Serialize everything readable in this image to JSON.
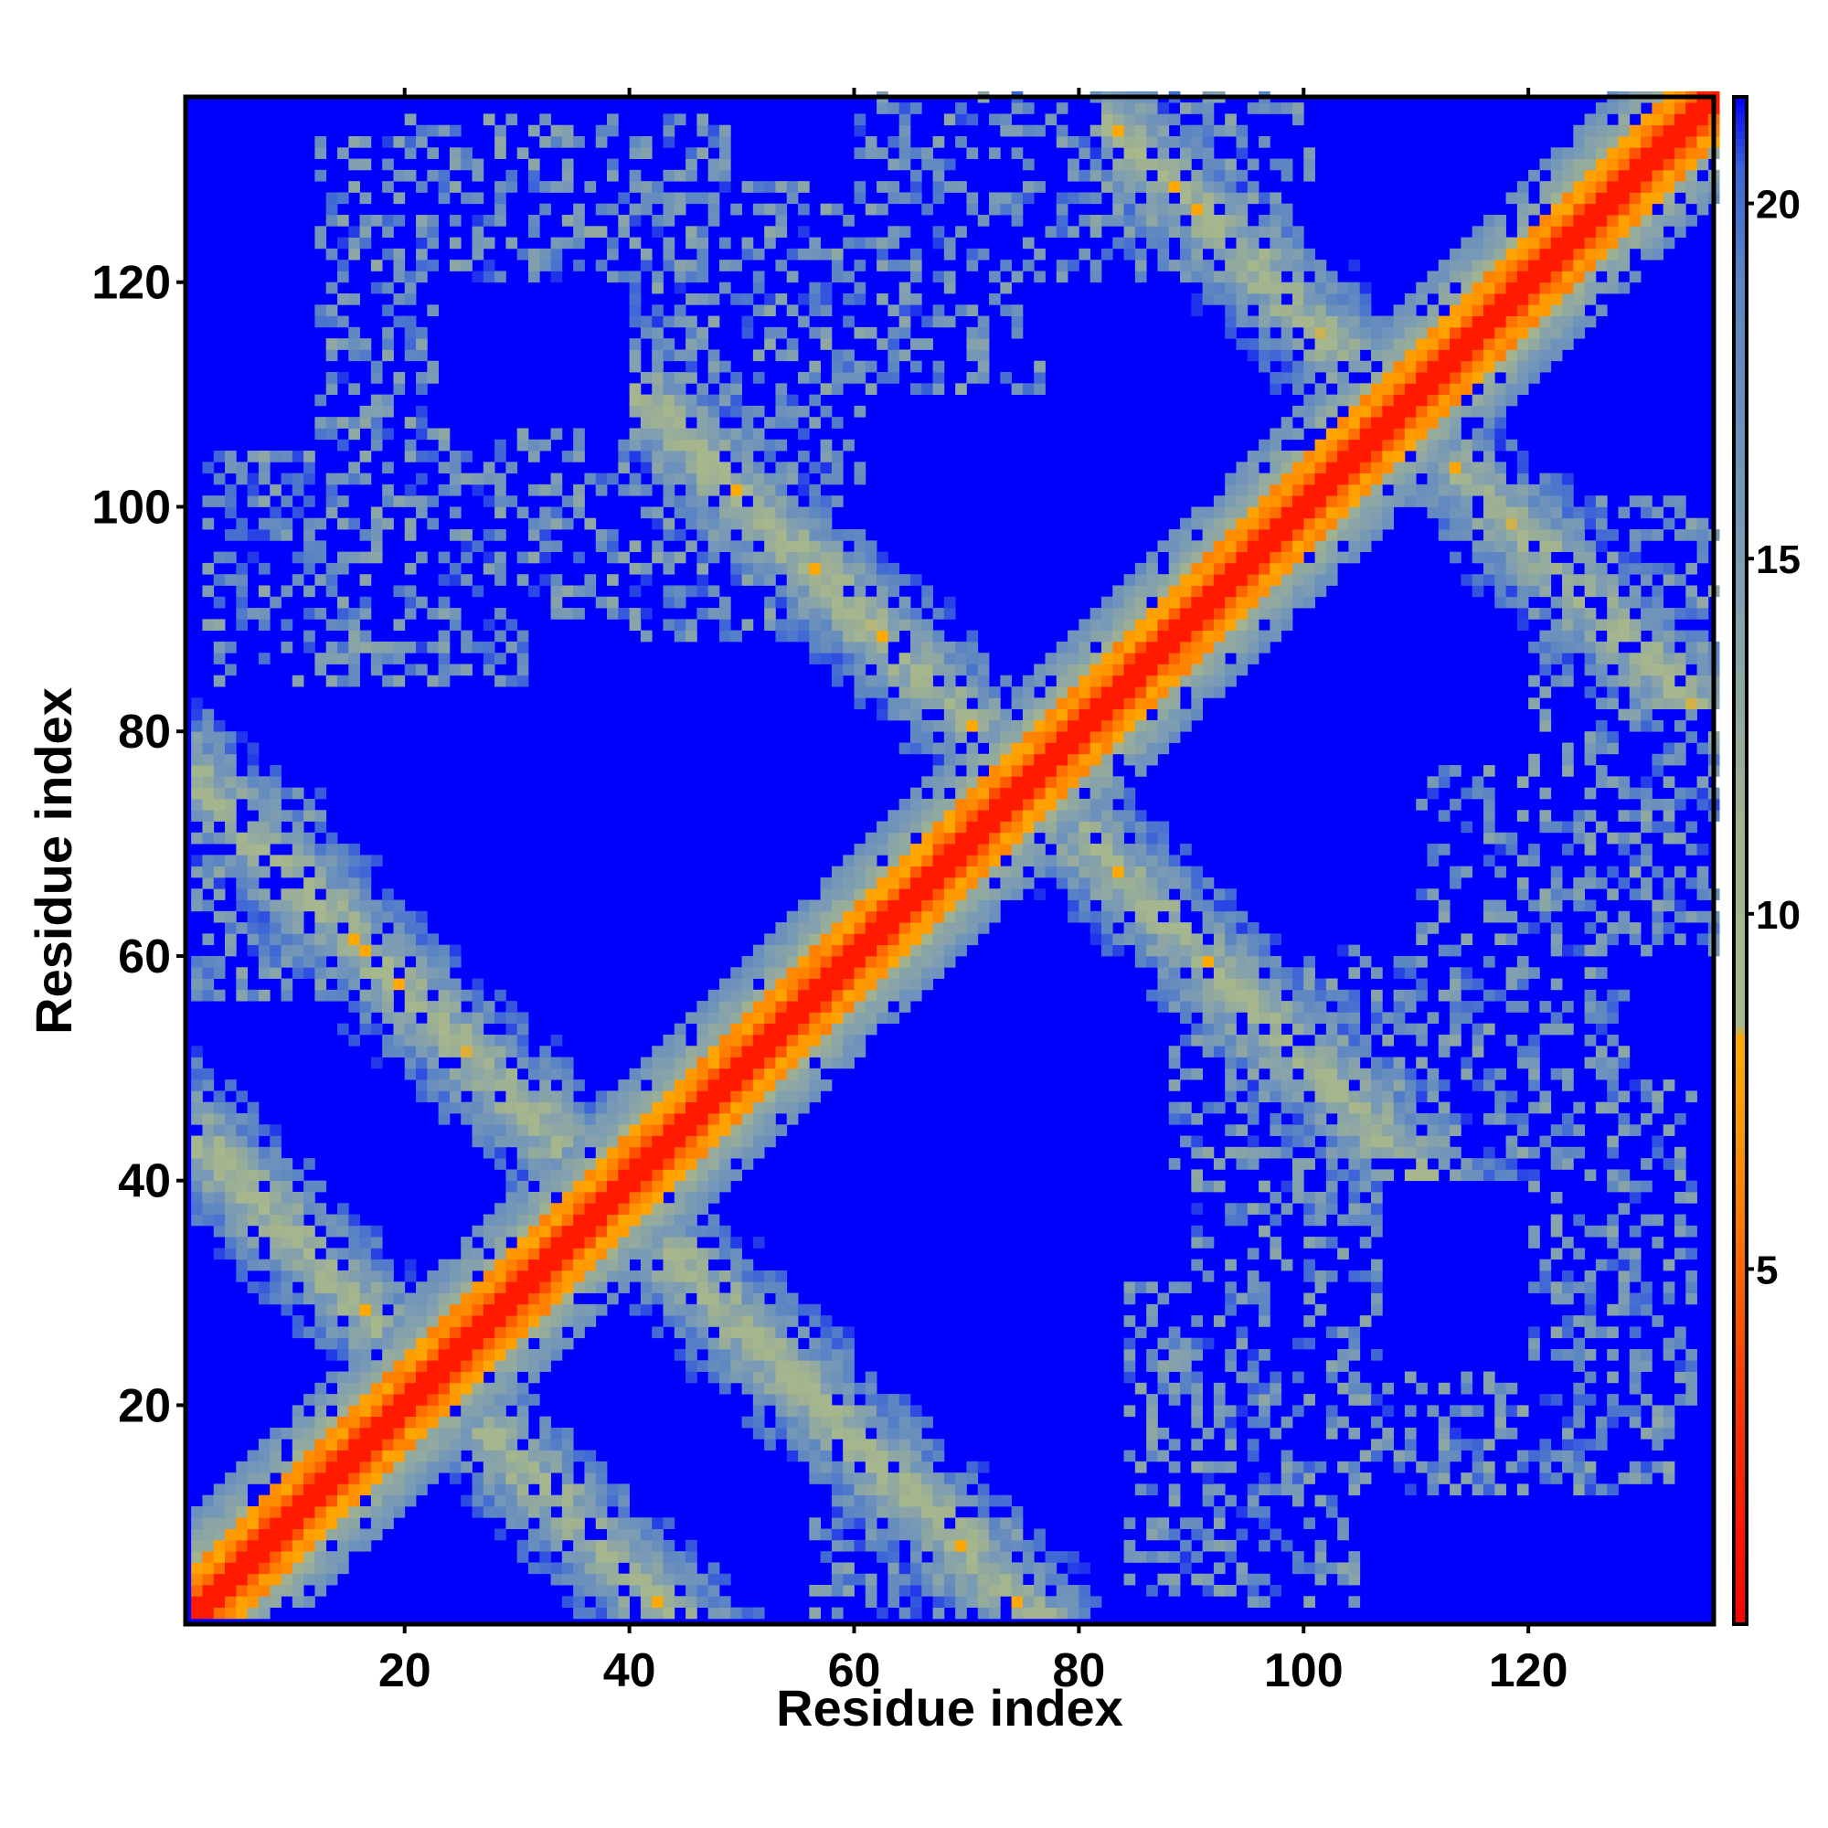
{
  "chart_data": {
    "type": "heatmap",
    "title": "",
    "xlabel": "Residue index",
    "ylabel": "Residue index",
    "n_residues": 136,
    "xlim": [
      1,
      136
    ],
    "ylim": [
      1,
      136
    ],
    "x_ticks": [
      20,
      40,
      60,
      80,
      100,
      120
    ],
    "y_ticks": [
      20,
      40,
      60,
      80,
      100,
      120
    ],
    "colorbar": {
      "range": [
        0,
        21.5
      ],
      "ticks": [
        5,
        10,
        15,
        20
      ],
      "stops": [
        {
          "value": 0,
          "color": "#ff0000"
        },
        {
          "value": 3,
          "color": "#ff3300"
        },
        {
          "value": 5,
          "color": "#ff6600"
        },
        {
          "value": 7,
          "color": "#ff9900"
        },
        {
          "value": 8.3,
          "color": "#ffaa00"
        },
        {
          "value": 8.4,
          "color": "#a8b88c"
        },
        {
          "value": 11,
          "color": "#a4b48e"
        },
        {
          "value": 15,
          "color": "#7c9cb4"
        },
        {
          "value": 19,
          "color": "#5a84c4"
        },
        {
          "value": 20.5,
          "color": "#3c64d8"
        },
        {
          "value": 21.5,
          "color": "#0000ff"
        }
      ]
    },
    "description_of_values": "Pairwise residue distance map (symmetric). Diagonal band = 0-4, anti-diagonal contact bands = 8-18, background = >20.",
    "features": {
      "diagonal": {
        "core_width": 1.5,
        "mid_width": 4,
        "outer_width": 9
      },
      "contact_bands": [
        {
          "i_range": [
            1,
            36
          ],
          "j_range": [
            56,
            76
          ],
          "note": "lower-left to upper-left band"
        },
        {
          "i_range": [
            42,
            75
          ],
          "j_range": [
            75,
            110
          ],
          "note": "band perpendicular to diagonal"
        },
        {
          "i_range": [
            76,
            108
          ],
          "j_range": [
            45,
            75
          ],
          "note": "mirror band"
        },
        {
          "i_range": [
            84,
            108
          ],
          "j_range": [
            108,
            136
          ],
          "note": "upper-right band"
        },
        {
          "i_range": [
            110,
            136
          ],
          "j_range": [
            84,
            108
          ],
          "note": "right band"
        },
        {
          "i_range": [
            40,
            75
          ],
          "j_range": [
            1,
            40
          ],
          "note": "bottom band"
        }
      ]
    }
  }
}
